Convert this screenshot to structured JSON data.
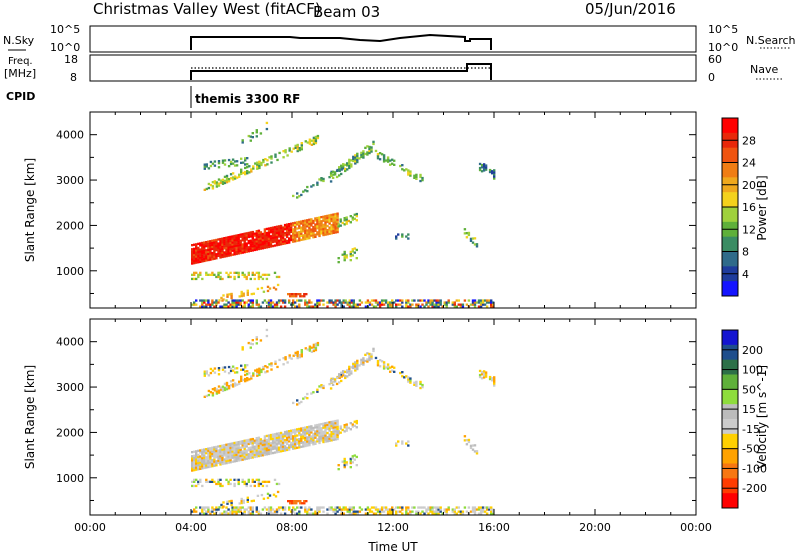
{
  "header": {
    "title": "Christmas Valley West (fitACF)",
    "beam": "Beam 03",
    "date": "05/Jun/2016"
  },
  "panels": {
    "nsky": {
      "left_label": "N.Sky",
      "right_label": "N.Search",
      "left_ticks": [
        "10^5",
        "10^0"
      ],
      "right_ticks": [
        "10^5",
        "10^0"
      ]
    },
    "freq": {
      "left_label_1": "Freq.",
      "left_label_2": "[MHz]",
      "right_label": "Nave",
      "left_ticks": [
        "18",
        "8"
      ],
      "right_ticks": [
        "60",
        "0"
      ]
    },
    "cpid": {
      "label": "CPID",
      "mode": "themis 3300 RF"
    }
  },
  "colors": {
    "power_scale": [
      "#1414ff",
      "#1e3c9c",
      "#2f6b8a",
      "#3a8c63",
      "#5fb03a",
      "#9fd13c",
      "#f4d21c",
      "#f0a81c",
      "#f07d14",
      "#ef5410",
      "#e8280a",
      "#ff0000"
    ],
    "velocity_scale": [
      "#ff0000",
      "#ff3c00",
      "#f77712",
      "#ffa200",
      "#ffd000",
      "#cccccc",
      "#bcbcbc",
      "#8edc3c",
      "#5fb03a",
      "#2d7048",
      "#1f4e8c",
      "#1414d0"
    ]
  },
  "chart_data": [
    {
      "type": "heatmap",
      "name": "power",
      "ylabel": "Slant Range [km]",
      "xlabel": "",
      "ylim": [
        180,
        4500
      ],
      "xlim_hours": [
        0,
        24
      ],
      "y_ticks": [
        "1000",
        "2000",
        "3000",
        "4000"
      ],
      "colorbar_label": "Power [dB]",
      "colorbar_ticks": [
        "4",
        "8",
        "12",
        "16",
        "20",
        "24",
        "28"
      ],
      "colorbar_range": [
        0,
        32
      ]
    },
    {
      "type": "heatmap",
      "name": "velocity",
      "ylabel": "Slant Range [km]",
      "xlabel": "Time UT",
      "ylim": [
        180,
        4500
      ],
      "xlim_hours": [
        0,
        24
      ],
      "y_ticks": [
        "1000",
        "2000",
        "3000",
        "4000"
      ],
      "x_ticks": [
        "00:00",
        "04:00",
        "08:00",
        "12:00",
        "16:00",
        "20:00",
        "00:00"
      ],
      "colorbar_label": "Velocity [m s^-1]",
      "colorbar_ticks": [
        "200",
        "100",
        "50",
        "15",
        "-15",
        "-50",
        "-100",
        "-200"
      ]
    }
  ]
}
